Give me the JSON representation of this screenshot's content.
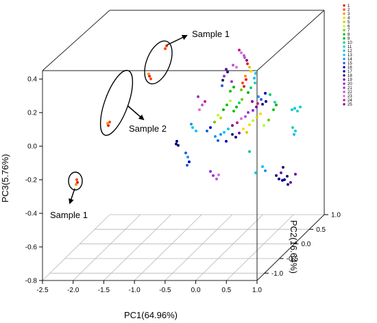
{
  "chart_data": {
    "type": "scatter",
    "title": "",
    "xlabel": "PC1(64.96%)",
    "ylabel": "PC2(16.64%)",
    "zlabel": "PC3(5.76%)",
    "xlim": [
      -2.5,
      1.0
    ],
    "ylim": [
      -1.25,
      1.0
    ],
    "zlim": [
      -0.8,
      0.45
    ],
    "x_ticks": [
      "-2.5",
      "-2.0",
      "-1.5",
      "-1.0",
      "-0.5",
      "0.0",
      "0.5",
      "1.0"
    ],
    "y_ticks": [
      "-1.0",
      "-0.5",
      "0.0",
      "0.5",
      "1.0"
    ],
    "z_ticks": [
      "-0.8",
      "-0.6",
      "-0.4",
      "-0.2",
      "0.0",
      "0.2",
      "0.4"
    ],
    "grid": true,
    "legend_position": "right",
    "legend": [
      "1",
      "2",
      "3",
      "4",
      "5",
      "6",
      "7",
      "8",
      "9",
      "10",
      "11",
      "12",
      "13",
      "14",
      "15",
      "16",
      "17",
      "18",
      "19",
      "20",
      "21",
      "22",
      "23",
      "24",
      "25"
    ],
    "legend_colors": [
      "#e41a1c",
      "#ff4500",
      "#ff8c00",
      "#ffd700",
      "#cdcd00",
      "#adff2f",
      "#66cd00",
      "#00c800",
      "#00b400",
      "#00d27a",
      "#20d0b4",
      "#00ced1",
      "#00bfff",
      "#1e90ff",
      "#1c5fd8",
      "#0000cd",
      "#00008b",
      "#191970",
      "#6a0dad",
      "#8a2be2",
      "#9932cc",
      "#ba55d3",
      "#da70d6",
      "#c71585",
      "#8b008b"
    ],
    "annotations": [
      {
        "text": "Sample 1",
        "target": "ellipse-upper"
      },
      {
        "text": "Sample 2",
        "target": "ellipse-middle"
      },
      {
        "text": "Sample 1",
        "target": "ellipse-lower"
      }
    ]
  }
}
